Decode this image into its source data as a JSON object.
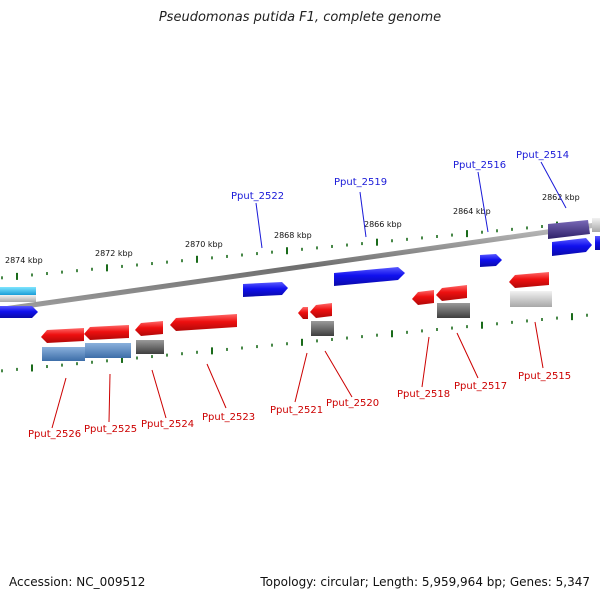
{
  "title": "Pseudomonas putida F1, complete genome",
  "footer": {
    "accession": "Accession: NC_009512",
    "summary": "Topology: circular; Length: 5,959,964 bp; Genes: 5,347"
  },
  "scale_labels": [
    "2874 kbp",
    "2872 kbp",
    "2870 kbp",
    "2868 kbp",
    "2866 kbp",
    "2864 kbp",
    "2862 kbp"
  ],
  "colors": {
    "forward_label": "#1a1ad8",
    "reverse_label": "#cc0000",
    "forward_gene": "#1212e8",
    "reverse_gene": "#e81010",
    "backbone": "#8a8a8a",
    "tick": "#1a6b1a"
  },
  "forward_genes": [
    {
      "id": "Pput_2522",
      "label": "Pput_2522"
    },
    {
      "id": "Pput_2519",
      "label": "Pput_2519"
    },
    {
      "id": "Pput_2516",
      "label": "Pput_2516"
    },
    {
      "id": "Pput_2514",
      "label": "Pput_2514"
    }
  ],
  "reverse_genes": [
    {
      "id": "Pput_2526",
      "label": "Pput_2526"
    },
    {
      "id": "Pput_2525",
      "label": "Pput_2525"
    },
    {
      "id": "Pput_2524",
      "label": "Pput_2524"
    },
    {
      "id": "Pput_2523",
      "label": "Pput_2523"
    },
    {
      "id": "Pput_2521",
      "label": "Pput_2521"
    },
    {
      "id": "Pput_2520",
      "label": "Pput_2520"
    },
    {
      "id": "Pput_2518",
      "label": "Pput_2518"
    },
    {
      "id": "Pput_2517",
      "label": "Pput_2517"
    },
    {
      "id": "Pput_2515",
      "label": "Pput_2515"
    }
  ]
}
